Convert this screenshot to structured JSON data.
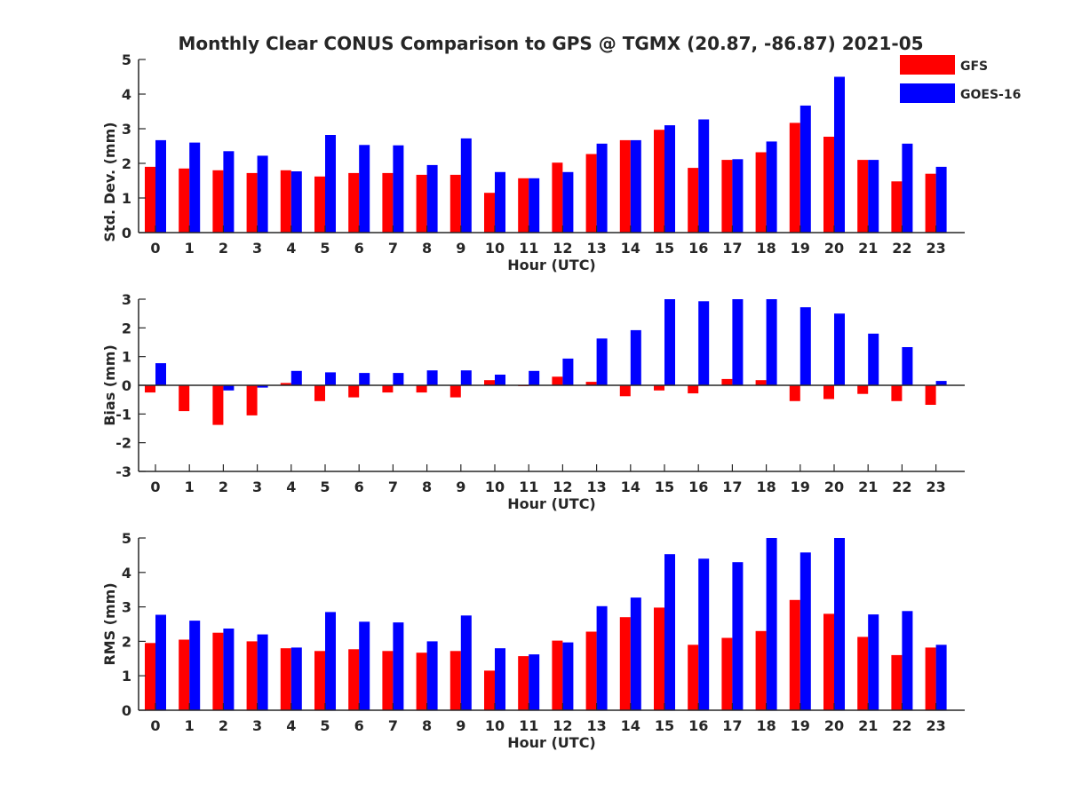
{
  "title": "Monthly Clear CONUS Comparison to GPS @ TGMX (20.87, -86.87) 2021-05",
  "legend": {
    "placement": "top-right",
    "items": [
      {
        "label": "GFS",
        "color": "#ff0000"
      },
      {
        "label": "GOES-16",
        "color": "#0000ff"
      }
    ]
  },
  "chart_data": [
    {
      "type": "bar",
      "xlabel": "Hour (UTC)",
      "ylabel": "Std. Dev. (mm)",
      "ylim": [
        0,
        5
      ],
      "yticks": [
        "0",
        "1",
        "2",
        "3",
        "4",
        "5"
      ],
      "categories": [
        "0",
        "1",
        "2",
        "3",
        "4",
        "5",
        "6",
        "7",
        "8",
        "9",
        "10",
        "11",
        "12",
        "13",
        "14",
        "15",
        "16",
        "17",
        "18",
        "19",
        "20",
        "21",
        "22",
        "23"
      ],
      "series": [
        {
          "name": "GFS",
          "color": "#ff0000",
          "values": [
            1.9,
            1.85,
            1.8,
            1.72,
            1.8,
            1.62,
            1.72,
            1.72,
            1.67,
            1.67,
            1.15,
            1.57,
            2.02,
            2.27,
            2.67,
            2.97,
            1.87,
            2.1,
            2.32,
            3.17,
            2.77,
            2.1,
            1.48,
            1.7
          ]
        },
        {
          "name": "GOES-16",
          "color": "#0000ff",
          "values": [
            2.67,
            2.6,
            2.35,
            2.22,
            1.77,
            2.82,
            2.53,
            2.52,
            1.95,
            2.72,
            1.75,
            1.57,
            1.75,
            2.57,
            2.67,
            3.1,
            3.27,
            2.12,
            2.63,
            3.67,
            4.5,
            2.1,
            2.57,
            1.9
          ]
        }
      ]
    },
    {
      "type": "bar",
      "xlabel": "Hour (UTC)",
      "ylabel": "Bias (mm)",
      "ylim": [
        -3,
        3
      ],
      "yticks": [
        "-3",
        "-2",
        "-1",
        "0",
        "1",
        "2",
        "3"
      ],
      "categories": [
        "0",
        "1",
        "2",
        "3",
        "4",
        "5",
        "6",
        "7",
        "8",
        "9",
        "10",
        "11",
        "12",
        "13",
        "14",
        "15",
        "16",
        "17",
        "18",
        "19",
        "20",
        "21",
        "22",
        "23"
      ],
      "series": [
        {
          "name": "GFS",
          "color": "#ff0000",
          "values": [
            -0.25,
            -0.9,
            -1.38,
            -1.05,
            0.08,
            -0.55,
            -0.42,
            -0.25,
            -0.25,
            -0.42,
            0.18,
            -0.03,
            0.3,
            0.12,
            -0.38,
            -0.18,
            -0.28,
            0.22,
            0.18,
            -0.55,
            -0.48,
            -0.3,
            -0.55,
            -0.68
          ]
        },
        {
          "name": "GOES-16",
          "color": "#0000ff",
          "values": [
            0.77,
            0.0,
            -0.18,
            -0.08,
            0.5,
            0.45,
            0.43,
            0.43,
            0.52,
            0.52,
            0.37,
            0.5,
            0.93,
            1.63,
            1.92,
            3.0,
            2.93,
            3.0,
            3.0,
            2.72,
            2.5,
            1.8,
            1.33,
            0.15
          ]
        }
      ]
    },
    {
      "type": "bar",
      "xlabel": "Hour (UTC)",
      "ylabel": "RMS (mm)",
      "ylim": [
        0,
        5
      ],
      "yticks": [
        "0",
        "1",
        "2",
        "3",
        "4",
        "5"
      ],
      "categories": [
        "0",
        "1",
        "2",
        "3",
        "4",
        "5",
        "6",
        "7",
        "8",
        "9",
        "10",
        "11",
        "12",
        "13",
        "14",
        "15",
        "16",
        "17",
        "18",
        "19",
        "20",
        "21",
        "22",
        "23"
      ],
      "series": [
        {
          "name": "GFS",
          "color": "#ff0000",
          "values": [
            1.95,
            2.05,
            2.25,
            2.0,
            1.8,
            1.72,
            1.77,
            1.72,
            1.67,
            1.72,
            1.15,
            1.57,
            2.02,
            2.28,
            2.7,
            2.98,
            1.9,
            2.1,
            2.3,
            3.2,
            2.8,
            2.13,
            1.6,
            1.82
          ]
        },
        {
          "name": "GOES-16",
          "color": "#0000ff",
          "values": [
            2.77,
            2.6,
            2.37,
            2.2,
            1.82,
            2.85,
            2.57,
            2.55,
            2.0,
            2.75,
            1.8,
            1.62,
            1.97,
            3.02,
            3.27,
            4.53,
            4.4,
            4.3,
            5.0,
            4.58,
            5.0,
            2.78,
            2.88,
            1.9
          ]
        }
      ]
    }
  ]
}
